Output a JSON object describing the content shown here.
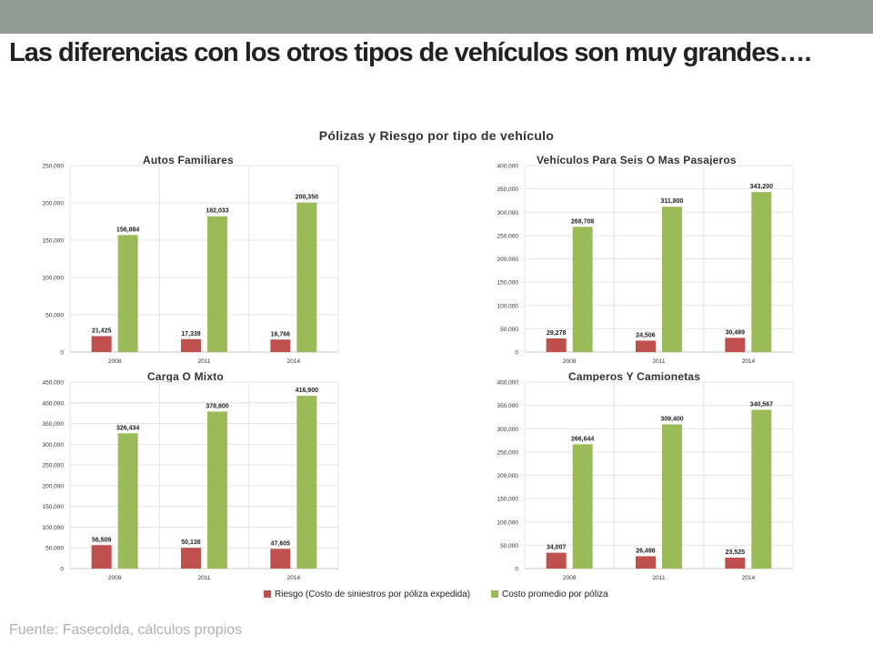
{
  "header": {
    "title": "Las diferencias con los otros tipos de vehículos son muy grandes…."
  },
  "chart_data": {
    "type": "bar",
    "title": "Pólizas y Riesgo por tipo de vehículo",
    "legend": [
      {
        "label": "Riesgo (Costo de siniestros por póliza expedida)",
        "color": "#c0504d"
      },
      {
        "label": "Costo promedio por póliza",
        "color": "#9bbb59"
      }
    ],
    "legend_position": "bottom",
    "panels": [
      {
        "title": "Autos Familiares",
        "categories": [
          "2008",
          "2011",
          "2014"
        ],
        "ylim": [
          0,
          250000
        ],
        "yticks": [
          "0",
          "50,000",
          "100,000",
          "150,000",
          "200,000",
          "250,000"
        ],
        "series": [
          {
            "name": "Riesgo (Costo de siniestros por póliza expedida)",
            "values": [
              21425,
              17339,
              16766
            ],
            "labels": [
              "21,425",
              "17,339",
              "16,766"
            ]
          },
          {
            "name": "Costo promedio por póliza",
            "values": [
              156884,
              182033,
              200350
            ],
            "labels": [
              "156,884",
              "182,033",
              "200,350"
            ]
          }
        ]
      },
      {
        "title": "Vehículos Para Seis O Mas Pasajeros",
        "categories": [
          "2008",
          "2011",
          "2014"
        ],
        "ylim": [
          0,
          400000
        ],
        "yticks": [
          "0",
          "50,000",
          "100,000",
          "150,000",
          "200,000",
          "250,000",
          "300,000",
          "350,000",
          "400,000"
        ],
        "series": [
          {
            "name": "Riesgo (Costo de siniestros por póliza expedida)",
            "values": [
              29278,
              24506,
              30489
            ],
            "labels": [
              "29,278",
              "24,506",
              "30,489"
            ]
          },
          {
            "name": "Costo promedio por póliza",
            "values": [
              268708,
              311800,
              343200
            ],
            "labels": [
              "268,708",
              "311,800",
              "343,200"
            ]
          }
        ]
      },
      {
        "title": "Carga O Mixto",
        "categories": [
          "2008",
          "2011",
          "2014"
        ],
        "ylim": [
          0,
          450000
        ],
        "yticks": [
          "0",
          "50,000",
          "100,000",
          "150,000",
          "200,000",
          "250,000",
          "300,000",
          "350,000",
          "400,000",
          "450,000"
        ],
        "series": [
          {
            "name": "Riesgo (Costo de siniestros por póliza expedida)",
            "values": [
              56509,
              50138,
              47605
            ],
            "labels": [
              "56,509",
              "50,138",
              "47,605"
            ]
          },
          {
            "name": "Costo promedio por póliza",
            "values": [
              326434,
              378800,
              416900
            ],
            "labels": [
              "326,434",
              "378,800",
              "416,900"
            ]
          }
        ]
      },
      {
        "title": "Camperos Y Camionetas",
        "categories": [
          "2008",
          "2011",
          "2014"
        ],
        "ylim": [
          0,
          400000
        ],
        "yticks": [
          "0",
          "50,000",
          "100,000",
          "150,000",
          "200,000",
          "250,000",
          "300,000",
          "350,000",
          "400,000"
        ],
        "series": [
          {
            "name": "Riesgo (Costo de siniestros por póliza expedida)",
            "values": [
              34007,
              26498,
              23525
            ],
            "labels": [
              "34,007",
              "26,498",
              "23,525"
            ]
          },
          {
            "name": "Costo promedio por póliza",
            "values": [
              266644,
              309400,
              340567
            ],
            "labels": [
              "266,644",
              "309,400",
              "340,567"
            ]
          }
        ]
      }
    ]
  },
  "footer": {
    "source": "Fuente: Fasecolda, cálculos propios"
  }
}
